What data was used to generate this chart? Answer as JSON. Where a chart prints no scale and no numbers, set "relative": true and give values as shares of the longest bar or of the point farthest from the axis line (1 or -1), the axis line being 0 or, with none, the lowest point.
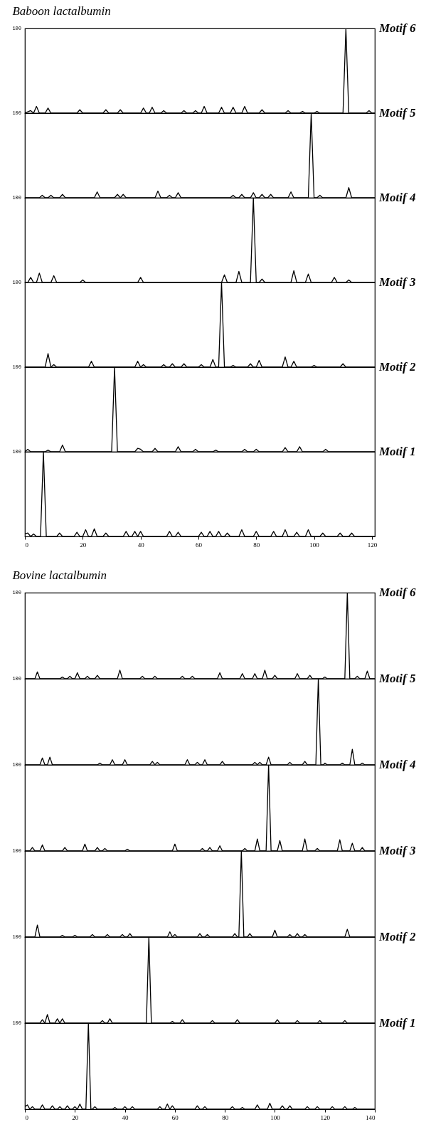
{
  "chart_data": [
    {
      "type": "line",
      "title": "Baboon lactalbumin",
      "relative": true,
      "annotations": [
        "100"
      ],
      "xlim": [
        0,
        121
      ],
      "series": [
        {
          "name": "Motif 6",
          "color": "#000000",
          "x": [
            0,
            2,
            3,
            4,
            5,
            7,
            8,
            9,
            18,
            19,
            20,
            27,
            28,
            29,
            32,
            33,
            34,
            40,
            41,
            42,
            43,
            44,
            45,
            47,
            48,
            49,
            54,
            55,
            56,
            58,
            59,
            60,
            61,
            62,
            63,
            67,
            68,
            69,
            71,
            72,
            73,
            75,
            76,
            77,
            81,
            82,
            83,
            90,
            91,
            92,
            95,
            96,
            97,
            100,
            101,
            102,
            110,
            111,
            112,
            118,
            119,
            120,
            121
          ],
          "values": [
            0,
            0.03,
            0,
            0.08,
            0,
            0,
            0.06,
            0,
            0,
            0.04,
            0,
            0,
            0.04,
            0,
            0,
            0.04,
            0,
            0,
            0.06,
            0,
            0,
            0.07,
            0,
            0,
            0.03,
            0,
            0,
            0.03,
            0,
            0,
            0.03,
            0,
            0,
            0.08,
            0,
            0,
            0.07,
            0,
            0,
            0.07,
            0,
            0,
            0.08,
            0,
            0,
            0.04,
            0,
            0,
            0.03,
            0,
            0,
            0.02,
            0,
            0,
            0.02,
            0,
            0,
            1,
            0,
            0,
            0.03,
            0,
            0
          ]
        }
      ]
    },
    {
      "type": "line",
      "relative": true,
      "annotations": [
        "100"
      ],
      "xlim": [
        0,
        121
      ],
      "series": [
        {
          "name": "Motif 5",
          "color": "#000000",
          "x": [
            0,
            5,
            6,
            7,
            8,
            9,
            10,
            12,
            13,
            14,
            24,
            25,
            26,
            31,
            32,
            33,
            34,
            35,
            45,
            46,
            47,
            49,
            50,
            51,
            52,
            53,
            54,
            71,
            72,
            73,
            74,
            75,
            76,
            78,
            79,
            80,
            81,
            82,
            83,
            84,
            85,
            86,
            91,
            92,
            93,
            98,
            99,
            100,
            101,
            102,
            103,
            111,
            112,
            113,
            121
          ],
          "values": [
            0,
            0,
            0.03,
            0,
            0,
            0.03,
            0,
            0,
            0.04,
            0,
            0,
            0.07,
            0,
            0,
            0.04,
            0,
            0.04,
            0,
            0,
            0.08,
            0,
            0,
            0.03,
            0,
            0,
            0.06,
            0,
            0,
            0.03,
            0,
            0,
            0.04,
            0,
            0,
            0.06,
            0,
            0,
            0.04,
            0,
            0,
            0.04,
            0,
            0,
            0.07,
            0,
            0,
            1,
            0,
            0,
            0.03,
            0,
            0,
            0.12,
            0,
            0
          ]
        }
      ]
    },
    {
      "type": "line",
      "relative": true,
      "annotations": [
        "100"
      ],
      "xlim": [
        0,
        121
      ],
      "series": [
        {
          "name": "Motif 4",
          "color": "#000000",
          "x": [
            0,
            1,
            2,
            3,
            4,
            5,
            6,
            9,
            10,
            11,
            19,
            20,
            21,
            39,
            40,
            41,
            68,
            69,
            70,
            73,
            74,
            75,
            78,
            79,
            80,
            81,
            82,
            83,
            92,
            93,
            94,
            97,
            98,
            99,
            106,
            107,
            108,
            111,
            112,
            113,
            121
          ],
          "values": [
            0,
            0,
            0.06,
            0,
            0,
            0.11,
            0,
            0,
            0.08,
            0,
            0,
            0.03,
            0,
            0,
            0.06,
            0,
            0,
            0.09,
            0,
            0,
            0.13,
            0,
            0,
            1,
            0,
            0,
            0.04,
            0,
            0,
            0.14,
            0,
            0,
            0.1,
            0,
            0,
            0.06,
            0,
            0,
            0.03,
            0,
            0
          ]
        }
      ]
    },
    {
      "type": "line",
      "relative": true,
      "annotations": [
        "100"
      ],
      "xlim": [
        0,
        121
      ],
      "series": [
        {
          "name": "Motif 3",
          "color": "#000000",
          "x": [
            0,
            7,
            8,
            9,
            10,
            11,
            22,
            23,
            24,
            38,
            39,
            40,
            41,
            42,
            47,
            48,
            49,
            50,
            51,
            52,
            54,
            55,
            56,
            60,
            61,
            62,
            64,
            65,
            66,
            67,
            68,
            69,
            71,
            72,
            73,
            77,
            78,
            79,
            80,
            81,
            82,
            89,
            90,
            91,
            92,
            93,
            94,
            99,
            100,
            101,
            109,
            110,
            111,
            121
          ],
          "values": [
            0,
            0,
            0.16,
            0,
            0.03,
            0,
            0,
            0.07,
            0,
            0,
            0.07,
            0,
            0.03,
            0,
            0,
            0.03,
            0,
            0,
            0.04,
            0,
            0,
            0.04,
            0,
            0,
            0.03,
            0,
            0,
            0.09,
            0,
            0,
            1,
            0,
            0,
            0.02,
            0,
            0,
            0.04,
            0,
            0,
            0.08,
            0,
            0,
            0.12,
            0,
            0,
            0.07,
            0,
            0,
            0.02,
            0,
            0,
            0.04,
            0,
            0
          ]
        }
      ]
    },
    {
      "type": "line",
      "relative": true,
      "annotations": [
        "100"
      ],
      "xlim": [
        0,
        121
      ],
      "series": [
        {
          "name": "Motif 2",
          "color": "#000000",
          "x": [
            0,
            1,
            2,
            7,
            8,
            9,
            12,
            13,
            14,
            30,
            31,
            32,
            38,
            39,
            40,
            41,
            44,
            45,
            46,
            52,
            53,
            54,
            58,
            59,
            60,
            65,
            66,
            67,
            75,
            76,
            77,
            79,
            80,
            81,
            89,
            90,
            91,
            94,
            95,
            96,
            103,
            104,
            105,
            121
          ],
          "values": [
            0,
            0.03,
            0,
            0,
            0.02,
            0,
            0,
            0.08,
            0,
            0,
            1,
            0,
            0,
            0.04,
            0.03,
            0,
            0,
            0.04,
            0,
            0,
            0.06,
            0,
            0,
            0.03,
            0,
            0,
            0.02,
            0,
            0,
            0.03,
            0,
            0,
            0.03,
            0,
            0,
            0.05,
            0,
            0,
            0.06,
            0,
            0,
            0.03,
            0,
            0
          ]
        }
      ]
    },
    {
      "type": "line",
      "relative": true,
      "annotations": [
        "100"
      ],
      "xlim": [
        0,
        121
      ],
      "xticks": [
        0,
        20,
        40,
        60,
        80,
        100,
        120
      ],
      "series": [
        {
          "name": "Motif 1",
          "color": "#000000",
          "x": [
            0,
            1,
            2,
            3,
            4,
            5.4,
            6.4,
            7.4,
            11,
            12,
            13,
            17,
            18,
            19,
            20,
            21,
            22,
            23,
            24,
            25,
            27,
            28,
            29,
            34,
            35,
            36,
            37,
            38,
            39,
            40,
            41,
            49,
            50,
            51,
            52,
            53,
            54,
            60,
            61,
            62,
            63,
            64,
            65,
            66,
            67,
            68,
            69,
            70,
            71,
            74,
            75,
            76,
            79,
            80,
            81,
            85,
            86,
            87,
            89,
            90,
            91,
            93,
            94,
            95,
            97,
            98,
            99,
            102,
            103,
            104,
            108,
            109,
            110,
            112,
            113,
            114,
            121
          ],
          "values": [
            0.03,
            0.04,
            0,
            0.03,
            0,
            0,
            1,
            0,
            0,
            0.04,
            0,
            0,
            0.05,
            0,
            0,
            0.08,
            0,
            0,
            0.09,
            0,
            0,
            0.04,
            0,
            0,
            0.06,
            0,
            0,
            0.06,
            0,
            0.06,
            0,
            0,
            0.06,
            0,
            0,
            0.05,
            0,
            0,
            0.05,
            0,
            0,
            0.06,
            0,
            0,
            0.06,
            0,
            0,
            0.04,
            0,
            0,
            0.08,
            0,
            0,
            0.06,
            0,
            0,
            0.06,
            0,
            0,
            0.08,
            0,
            0,
            0.05,
            0,
            0,
            0.08,
            0,
            0,
            0.04,
            0,
            0,
            0.04,
            0,
            0,
            0.04,
            0,
            0
          ]
        }
      ]
    },
    {
      "type": "line",
      "title": "Bovine lactalbumin",
      "relative": true,
      "annotations": [
        "100"
      ],
      "xlim": [
        0,
        140
      ],
      "series": [
        {
          "name": "Motif 6",
          "color": "#000000",
          "x": [
            0,
            4,
            5,
            6,
            14,
            15,
            16,
            17,
            18,
            19,
            20,
            21,
            22,
            24,
            25,
            26,
            28,
            29,
            30,
            37,
            38,
            39,
            46,
            47,
            48,
            51,
            52,
            53,
            62,
            63,
            64,
            66,
            67,
            68,
            77,
            78,
            79,
            86,
            87,
            88,
            91,
            92,
            93,
            95,
            96,
            97,
            99,
            100,
            101,
            108,
            109,
            110,
            113,
            114,
            115,
            119,
            120,
            121,
            128,
            129,
            130,
            132,
            133,
            134,
            136,
            137,
            138,
            140
          ],
          "values": [
            0,
            0,
            0.08,
            0,
            0,
            0.02,
            0,
            0,
            0.03,
            0,
            0,
            0.07,
            0,
            0,
            0.03,
            0,
            0,
            0.04,
            0,
            0,
            0.1,
            0,
            0,
            0.03,
            0,
            0,
            0.03,
            0,
            0,
            0.03,
            0,
            0,
            0.03,
            0,
            0,
            0.07,
            0,
            0,
            0.06,
            0,
            0,
            0.06,
            0,
            0,
            0.1,
            0,
            0,
            0.04,
            0,
            0,
            0.06,
            0,
            0,
            0.04,
            0,
            0,
            0.02,
            0,
            0,
            1,
            0,
            0,
            0.03,
            0,
            0,
            0.09,
            0,
            0
          ]
        }
      ]
    },
    {
      "type": "line",
      "relative": true,
      "annotations": [
        "100"
      ],
      "xlim": [
        0,
        140
      ],
      "series": [
        {
          "name": "Motif 5",
          "color": "#000000",
          "x": [
            0,
            6,
            7,
            8,
            9,
            10,
            11,
            29,
            30,
            31,
            34,
            35,
            36,
            39,
            40,
            41,
            50,
            51,
            52,
            53,
            54,
            64,
            65,
            66,
            68,
            69,
            70,
            71,
            72,
            73,
            78,
            79,
            80,
            91,
            92,
            93,
            94,
            95,
            96.5,
            97.5,
            98.5,
            105,
            106,
            107,
            111,
            112,
            113,
            116.4,
            117.4,
            118.4,
            119.4,
            120,
            121,
            126,
            127,
            128,
            130,
            131,
            132,
            134,
            135,
            136,
            140
          ],
          "values": [
            0,
            0,
            0.08,
            0,
            0,
            0.09,
            0,
            0,
            0.02,
            0,
            0,
            0.06,
            0,
            0,
            0.06,
            0,
            0,
            0.04,
            0,
            0.03,
            0,
            0,
            0.06,
            0,
            0,
            0.03,
            0,
            0,
            0.06,
            0,
            0,
            0.04,
            0,
            0,
            0.03,
            0,
            0.03,
            0,
            0,
            0.09,
            0,
            0,
            0.03,
            0,
            0,
            0.04,
            0,
            0,
            1,
            0,
            0,
            0.02,
            0,
            0,
            0.02,
            0,
            0,
            0.18,
            0,
            0,
            0.02,
            0,
            0
          ]
        }
      ]
    },
    {
      "type": "line",
      "relative": true,
      "annotations": [
        "100"
      ],
      "xlim": [
        0,
        140
      ],
      "series": [
        {
          "name": "Motif 4",
          "color": "#000000",
          "x": [
            0,
            2,
            3,
            4,
            6,
            7,
            8,
            15,
            16,
            17,
            23,
            24,
            25,
            28,
            29,
            30,
            31,
            32,
            33,
            40,
            41,
            42,
            59,
            60,
            61,
            70,
            71,
            72,
            73,
            74,
            75,
            77,
            78,
            79,
            87,
            88,
            89,
            92,
            93,
            94,
            96.5,
            97.5,
            98.5,
            101,
            102,
            103,
            111,
            112,
            113,
            116,
            117,
            118,
            125,
            126,
            127,
            130,
            131,
            132,
            134,
            135,
            136,
            140
          ],
          "values": [
            0,
            0,
            0.04,
            0,
            0,
            0.07,
            0,
            0,
            0.04,
            0,
            0,
            0.08,
            0,
            0,
            0.04,
            0,
            0,
            0.03,
            0,
            0,
            0.02,
            0,
            0,
            0.08,
            0,
            0,
            0.03,
            0,
            0,
            0.04,
            0,
            0,
            0.06,
            0,
            0,
            0.03,
            0,
            0,
            0.14,
            0,
            0,
            1,
            0,
            0,
            0.12,
            0,
            0,
            0.14,
            0,
            0,
            0.03,
            0,
            0,
            0.13,
            0,
            0,
            0.09,
            0,
            0,
            0.04,
            0,
            0
          ]
        }
      ]
    },
    {
      "type": "line",
      "relative": true,
      "annotations": [
        "100"
      ],
      "xlim": [
        0,
        140
      ],
      "series": [
        {
          "name": "Motif 3",
          "color": "#000000",
          "x": [
            0,
            4,
            5,
            6,
            14,
            15,
            16,
            19,
            20,
            21,
            26,
            27,
            28,
            32,
            33,
            34,
            38,
            39,
            40,
            41,
            42,
            43,
            57,
            58,
            59,
            60,
            61,
            69,
            70,
            71,
            72,
            73,
            74,
            83,
            84,
            85,
            85.6,
            86.6,
            87.6,
            89,
            90,
            91,
            99,
            100,
            101,
            105,
            106,
            107,
            108,
            109,
            110,
            111,
            112,
            113,
            128,
            129,
            130,
            140
          ],
          "values": [
            0,
            0,
            0.14,
            0,
            0,
            0.02,
            0,
            0,
            0.02,
            0,
            0,
            0.03,
            0,
            0,
            0.03,
            0,
            0,
            0.03,
            0,
            0,
            0.04,
            0,
            0,
            0.06,
            0,
            0.03,
            0,
            0,
            0.04,
            0,
            0,
            0.03,
            0,
            0,
            0.04,
            0,
            0,
            1,
            0,
            0,
            0.04,
            0,
            0,
            0.08,
            0,
            0,
            0.03,
            0,
            0,
            0.04,
            0,
            0,
            0.03,
            0,
            0,
            0.09,
            0,
            0
          ]
        }
      ]
    },
    {
      "type": "line",
      "relative": true,
      "annotations": [
        "100"
      ],
      "xlim": [
        0,
        140
      ],
      "series": [
        {
          "name": "Motif 2",
          "color": "#000000",
          "x": [
            0,
            6,
            7,
            8,
            9,
            10,
            12,
            13,
            14,
            15,
            16,
            30,
            31,
            32,
            33,
            34,
            35,
            48.6,
            49.6,
            50.6,
            58,
            59,
            60,
            62,
            63,
            64,
            74,
            75,
            76,
            84,
            85,
            86,
            100,
            101,
            102,
            108,
            109,
            110,
            117,
            118,
            119,
            127,
            128,
            129,
            140
          ],
          "values": [
            0,
            0,
            0.04,
            0,
            0.1,
            0,
            0,
            0.05,
            0,
            0.05,
            0,
            0,
            0.03,
            0,
            0,
            0.05,
            0,
            0,
            1,
            0,
            0,
            0.02,
            0,
            0,
            0.04,
            0,
            0,
            0.03,
            0,
            0,
            0.04,
            0,
            0,
            0.04,
            0,
            0,
            0.03,
            0,
            0,
            0.03,
            0,
            0,
            0.03,
            0,
            0
          ]
        }
      ]
    },
    {
      "type": "line",
      "relative": true,
      "annotations": [
        "100"
      ],
      "xlim": [
        0,
        140
      ],
      "xticks": [
        0,
        20,
        40,
        60,
        80,
        100,
        120,
        140
      ],
      "series": [
        {
          "name": "Motif 1",
          "color": "#000000",
          "x": [
            0,
            1,
            2,
            3,
            4,
            6,
            7,
            8,
            10,
            11,
            12,
            13,
            14,
            15,
            16,
            17,
            18,
            19,
            20,
            21,
            22,
            23,
            24.4,
            25.4,
            26.4,
            27,
            28,
            29,
            35,
            36,
            37,
            39,
            40,
            41,
            42,
            43,
            44,
            53,
            54,
            55,
            56,
            57,
            58,
            59,
            60,
            68,
            69,
            70,
            71,
            72,
            73,
            82,
            83,
            84,
            86,
            87,
            88,
            92,
            93,
            94,
            97,
            98,
            99,
            102,
            103,
            104,
            105,
            106,
            107,
            112,
            113,
            114,
            116,
            117,
            118,
            122,
            123,
            124,
            127,
            128,
            129,
            131,
            132,
            133,
            140
          ],
          "values": [
            0.03,
            0.05,
            0,
            0.03,
            0,
            0,
            0.05,
            0,
            0,
            0.04,
            0,
            0,
            0.03,
            0,
            0,
            0.04,
            0,
            0,
            0.03,
            0,
            0.06,
            0,
            0,
            1,
            0,
            0,
            0.03,
            0,
            0,
            0.02,
            0,
            0,
            0.03,
            0,
            0,
            0.03,
            0,
            0,
            0.03,
            0,
            0,
            0.06,
            0,
            0.04,
            0,
            0,
            0.04,
            0,
            0,
            0.03,
            0,
            0,
            0.03,
            0,
            0,
            0.02,
            0,
            0,
            0.05,
            0,
            0,
            0.07,
            0,
            0,
            0.04,
            0,
            0,
            0.04,
            0,
            0,
            0.03,
            0,
            0,
            0.03,
            0,
            0,
            0.03,
            0,
            0,
            0.03,
            0,
            0,
            0.02,
            0,
            0
          ]
        }
      ]
    }
  ]
}
